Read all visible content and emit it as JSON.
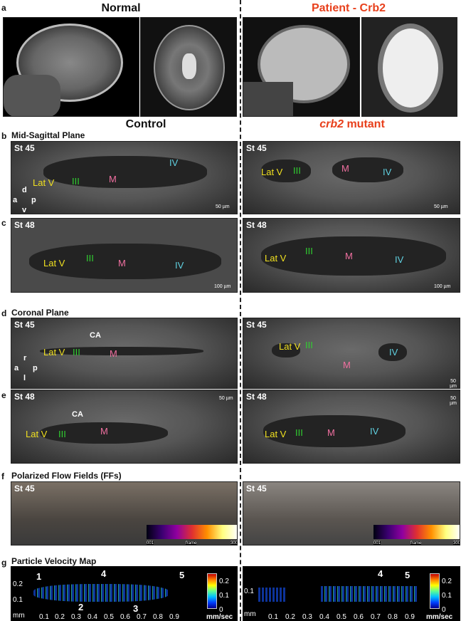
{
  "headers": {
    "normal": "Normal",
    "patient": "Patient - Crb2",
    "control": "Control",
    "mutant_italic": "crb2",
    "mutant_rest": " mutant"
  },
  "panels": {
    "a": {
      "letter": "a"
    },
    "b": {
      "letter": "b",
      "title": "Mid-Sagittal Plane",
      "stage": "St 45",
      "scale": "50 µm",
      "axes": {
        "d": "d",
        "a": "a",
        "p": "p",
        "v": "v"
      }
    },
    "c": {
      "letter": "c",
      "stage": "St 48",
      "scale": "100 µm"
    },
    "d": {
      "letter": "d",
      "title": "Coronal Plane",
      "stage": "St 45",
      "scale": "50 µm",
      "ca": "CA",
      "axes": {
        "r": "r",
        "a": "a",
        "p": "p",
        "l": "l"
      }
    },
    "e": {
      "letter": "e",
      "stage": "St 48",
      "scale": "50 µm",
      "ca": "CA"
    },
    "f": {
      "letter": "f",
      "title": "Polarized Flow Fields (FFs)",
      "stage": "St 45",
      "colorbar": {
        "min": "001",
        "label": "frame",
        "max": "300"
      }
    },
    "g": {
      "letter": "g",
      "title": "Particle Velocity Map",
      "control": {
        "yticks": [
          "0.2",
          "0.1"
        ],
        "xticks": [
          "0.1",
          "0.2",
          "0.3",
          "0.4",
          "0.5",
          "0.6",
          "0.7",
          "0.8",
          "0.9"
        ],
        "unit": "mm",
        "arrows": [
          "1",
          "2",
          "3",
          "4",
          "5"
        ],
        "cbar_ticks": [
          "0.2",
          "0.1",
          "0"
        ],
        "cbar_unit": "mm/sec"
      },
      "mutant": {
        "yticks": [
          "0.1"
        ],
        "xticks": [
          "0.1",
          "0.2",
          "0.3",
          "0.4",
          "0.5",
          "0.6",
          "0.7",
          "0.8",
          "0.9"
        ],
        "unit": "mm",
        "arrows": [
          "4",
          "5"
        ],
        "cbar_ticks": [
          "0.2",
          "0.1",
          "0"
        ],
        "cbar_unit": "mm/sec"
      }
    }
  },
  "labels": {
    "latv": "Lat V",
    "iii": "III",
    "m": "M",
    "iv": "IV"
  },
  "colors": {
    "patient_red": "#e8401c",
    "lat_v": "#f0e020",
    "iii": "#30d030",
    "m": "#f070a0",
    "iv": "#60d0e0",
    "arrowhead": "#e82010"
  }
}
